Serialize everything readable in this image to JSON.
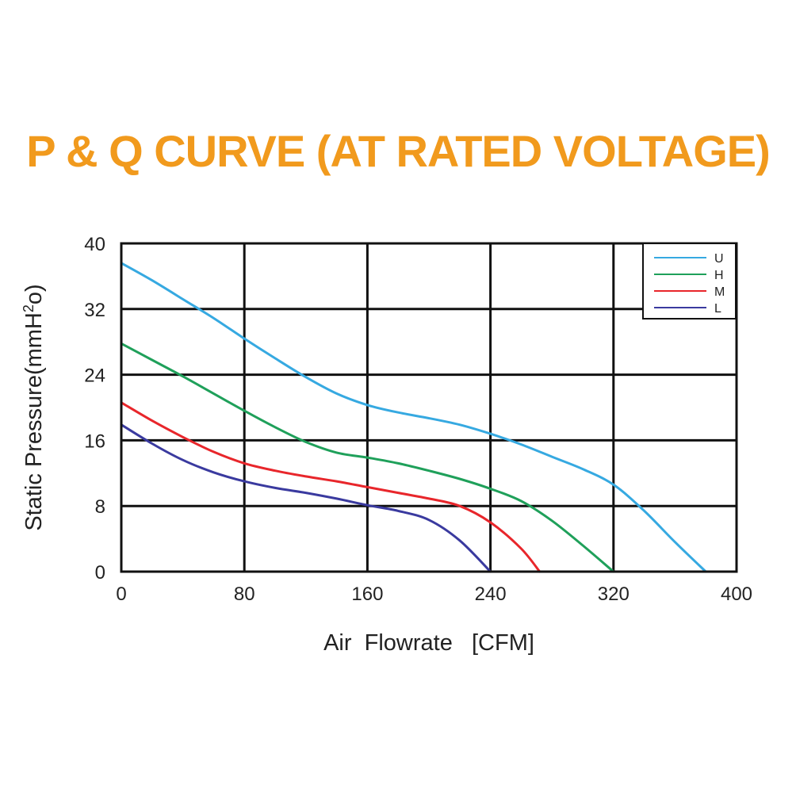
{
  "chart_data": {
    "type": "line",
    "title": "P & Q CURVE (AT RATED VOLTAGE)",
    "xlabel": "Air  Flowrate   [CFM]",
    "ylabel": "Static Pressure(mmH",
    "ylabel_sup": "2",
    "ylabel_end": "o)",
    "xlim": [
      0,
      400
    ],
    "ylim": [
      0,
      40
    ],
    "xticks": [
      "0",
      "80",
      "160",
      "240",
      "320",
      "400"
    ],
    "yticks": [
      "0",
      "8",
      "16",
      "24",
      "32",
      "40"
    ],
    "grid": true,
    "legend_position": "top-right",
    "series": [
      {
        "name": "U",
        "color": "#36a9e1",
        "points": [
          [
            0,
            37.6
          ],
          [
            20,
            35.5
          ],
          [
            40,
            33.2
          ],
          [
            60,
            30.9
          ],
          [
            80,
            28.4
          ],
          [
            100,
            26.0
          ],
          [
            120,
            23.7
          ],
          [
            140,
            21.7
          ],
          [
            160,
            20.3
          ],
          [
            180,
            19.4
          ],
          [
            200,
            18.7
          ],
          [
            220,
            17.9
          ],
          [
            240,
            16.8
          ],
          [
            260,
            15.5
          ],
          [
            280,
            14.0
          ],
          [
            300,
            12.5
          ],
          [
            320,
            10.6
          ],
          [
            340,
            7.4
          ],
          [
            360,
            3.6
          ],
          [
            380,
            0.0
          ]
        ]
      },
      {
        "name": "H",
        "color": "#1fa05a",
        "points": [
          [
            0,
            27.8
          ],
          [
            20,
            25.8
          ],
          [
            40,
            23.8
          ],
          [
            60,
            21.7
          ],
          [
            80,
            19.6
          ],
          [
            100,
            17.6
          ],
          [
            120,
            15.8
          ],
          [
            140,
            14.5
          ],
          [
            160,
            13.9
          ],
          [
            180,
            13.2
          ],
          [
            200,
            12.3
          ],
          [
            220,
            11.3
          ],
          [
            240,
            10.1
          ],
          [
            260,
            8.6
          ],
          [
            280,
            6.2
          ],
          [
            300,
            3.2
          ],
          [
            320,
            0.0
          ]
        ]
      },
      {
        "name": "M",
        "color": "#e8262b",
        "points": [
          [
            0,
            20.6
          ],
          [
            20,
            18.4
          ],
          [
            40,
            16.4
          ],
          [
            60,
            14.6
          ],
          [
            80,
            13.2
          ],
          [
            100,
            12.3
          ],
          [
            120,
            11.6
          ],
          [
            140,
            11.0
          ],
          [
            160,
            10.3
          ],
          [
            180,
            9.6
          ],
          [
            200,
            8.9
          ],
          [
            220,
            8.0
          ],
          [
            240,
            6.0
          ],
          [
            260,
            2.8
          ],
          [
            272,
            0.0
          ]
        ]
      },
      {
        "name": "L",
        "color": "#3a3a9f",
        "points": [
          [
            0,
            17.9
          ],
          [
            20,
            15.6
          ],
          [
            40,
            13.6
          ],
          [
            60,
            12.1
          ],
          [
            80,
            11.0
          ],
          [
            100,
            10.2
          ],
          [
            120,
            9.6
          ],
          [
            140,
            8.9
          ],
          [
            160,
            8.1
          ],
          [
            180,
            7.4
          ],
          [
            200,
            6.3
          ],
          [
            220,
            3.8
          ],
          [
            240,
            0.0
          ]
        ]
      }
    ]
  },
  "colors": {
    "title": "#f19a1d",
    "grid": "#111111",
    "text": "#222222"
  }
}
